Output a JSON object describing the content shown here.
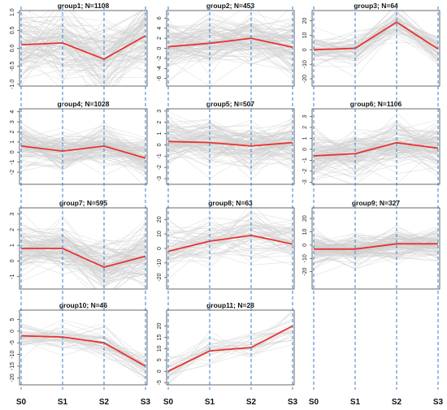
{
  "chart_data": {
    "type": "line",
    "categories": [
      "S0",
      "S1",
      "S2",
      "S3"
    ],
    "colors": {
      "mean_line": "#e8322f",
      "background_lines": "#cfcfcf",
      "stage_dividers": "#2f7fd4",
      "frame": "#444444"
    },
    "panels": [
      {
        "title": "group1; N=1108",
        "ylim": [
          -1.05,
          1.05
        ],
        "yticks": [
          -1.0,
          -0.5,
          0.0,
          0.5,
          1.0
        ],
        "ytick_labels": [
          "-1.0",
          "-0.5",
          "0.0",
          "0.5",
          "1.0"
        ],
        "mean": [
          0.1,
          0.15,
          -0.3,
          0.35
        ],
        "spread": 0.5
      },
      {
        "title": "group2; N=453",
        "ylim": [
          -7.5,
          7.5
        ],
        "yticks": [
          -6,
          -4,
          -2,
          0,
          2,
          4,
          6
        ],
        "ytick_labels": [
          "-6",
          "-4",
          "-2",
          "0",
          "2",
          "4",
          "6"
        ],
        "mean": [
          0.3,
          1.0,
          2.0,
          0.2
        ],
        "spread": 2.5
      },
      {
        "title": "group3; N=64",
        "ylim": [
          -25,
          27
        ],
        "yticks": [
          -20,
          -10,
          0,
          10,
          20
        ],
        "ytick_labels": [
          "-20",
          "-10",
          "0",
          "10",
          "20"
        ],
        "mean": [
          0,
          1,
          19,
          0.5
        ],
        "spread": 5
      },
      {
        "title": "group4; N=1028",
        "ylim": [
          -3.2,
          4.3
        ],
        "yticks": [
          -2,
          -1,
          0,
          1,
          2,
          3,
          4
        ],
        "ytick_labels": [
          "-2",
          "-1",
          "0",
          "1",
          "2",
          "3",
          "4"
        ],
        "mean": [
          0.6,
          0.1,
          0.6,
          -0.6
        ],
        "spread": 1
      },
      {
        "title": "group5; N=507",
        "ylim": [
          -3.5,
          3.2
        ],
        "yticks": [
          -3,
          -2,
          -1,
          0,
          1,
          2,
          3
        ],
        "ytick_labels": [
          "-3",
          "-2",
          "-1",
          "0",
          "1",
          "2",
          "3"
        ],
        "mean": [
          0.3,
          0.2,
          -0.1,
          0.2
        ],
        "spread": 1
      },
      {
        "title": "group6; N=1106",
        "ylim": [
          -3.2,
          3.7
        ],
        "yticks": [
          -3,
          -2,
          -1,
          0,
          1,
          2,
          3
        ],
        "ytick_labels": [
          "-3",
          "-2",
          "-1",
          "0",
          "1",
          "2",
          "3"
        ],
        "mean": [
          -0.6,
          -0.4,
          0.6,
          0.1
        ],
        "spread": 1
      },
      {
        "title": "group7; N=595",
        "ylim": [
          -1.8,
          3.4
        ],
        "yticks": [
          -1,
          0,
          1,
          2,
          3
        ],
        "ytick_labels": [
          "-1",
          "0",
          "1",
          "2",
          "3"
        ],
        "mean": [
          0.8,
          0.8,
          -0.4,
          0.3
        ],
        "spread": 0.8
      },
      {
        "title": "group8; N=63",
        "ylim": [
          -28,
          28
        ],
        "yticks": [
          -20,
          -10,
          0,
          10,
          20
        ],
        "ytick_labels": [
          "-20",
          "-10",
          "0",
          "10",
          "20"
        ],
        "mean": [
          -2,
          5,
          9,
          3
        ],
        "spread": 8
      },
      {
        "title": "group9; N=327",
        "ylim": [
          -33,
          28
        ],
        "yticks": [
          -20,
          -10,
          0,
          10,
          20
        ],
        "ytick_labels": [
          "-20",
          "-10",
          "0",
          "10",
          "20"
        ],
        "mean": [
          -3,
          -3,
          1,
          1
        ],
        "spread": 6
      },
      {
        "title": "group10; N=46",
        "ylim": [
          -23,
          9
        ],
        "yticks": [
          -20,
          -15,
          -10,
          -5,
          0,
          5
        ],
        "ytick_labels": [
          "-20",
          "-15",
          "-10",
          "-5",
          "0",
          "5"
        ],
        "mean": [
          -2,
          -2.5,
          -5,
          -15
        ],
        "spread": 3
      },
      {
        "title": "group11; N=28",
        "ylim": [
          -6,
          27
        ],
        "yticks": [
          -5,
          0,
          5,
          10,
          15,
          20
        ],
        "ytick_labels": [
          "-5",
          "0",
          "5",
          "10",
          "15",
          "20"
        ],
        "mean": [
          0,
          9,
          10.5,
          20
        ],
        "spread": 4
      }
    ]
  }
}
